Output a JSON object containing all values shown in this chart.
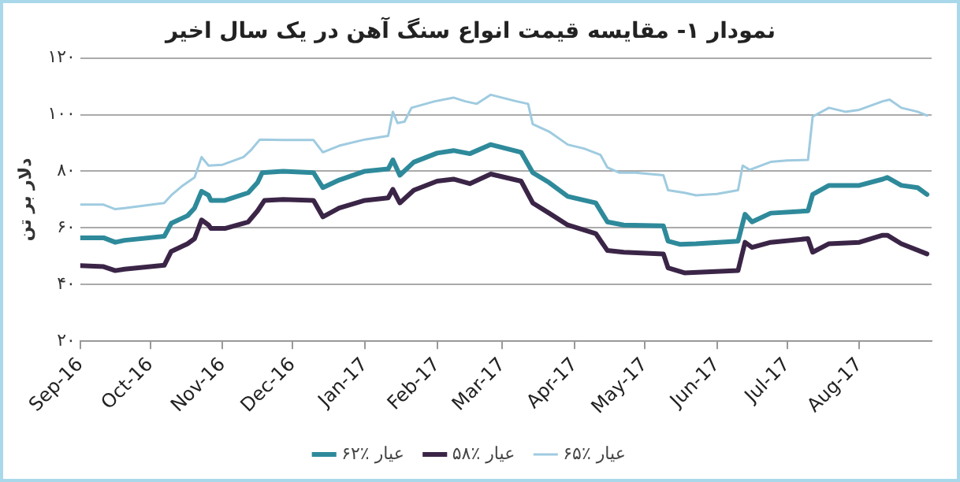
{
  "chart_data": {
    "type": "line",
    "title": "نمودار ۱- مقایسه قیمت انواع سنگ آهن در یک سال اخیر",
    "ylabel": "دلار بر تن",
    "xlim": [
      "2016-09-01",
      "2017-09-01"
    ],
    "xticks": [
      {
        "value": "2016-09-01",
        "label": "Sep-16"
      },
      {
        "value": "2016-10-01",
        "label": "Oct-16"
      },
      {
        "value": "2016-11-01",
        "label": "Nov-16"
      },
      {
        "value": "2016-12-01",
        "label": "Dec-16"
      },
      {
        "value": "2017-01-01",
        "label": "Jan-17"
      },
      {
        "value": "2017-02-01",
        "label": "Feb-17"
      },
      {
        "value": "2017-03-01",
        "label": "Mar-17"
      },
      {
        "value": "2017-04-01",
        "label": "Apr-17"
      },
      {
        "value": "2017-05-01",
        "label": "May-17"
      },
      {
        "value": "2017-06-01",
        "label": "Jun-17"
      },
      {
        "value": "2017-07-01",
        "label": "Jul-17"
      },
      {
        "value": "2017-08-01",
        "label": "Aug-17"
      }
    ],
    "ylim": [
      20,
      120
    ],
    "yticks": [
      {
        "value": 20,
        "label": "۲۰"
      },
      {
        "value": 40,
        "label": "۴۰"
      },
      {
        "value": 60,
        "label": "۶۰"
      },
      {
        "value": 80,
        "label": "۸۰"
      },
      {
        "value": 100,
        "label": "۱۰۰"
      },
      {
        "value": 120,
        "label": "۱۲۰"
      }
    ],
    "grid": "y",
    "legend": "bottom",
    "marker": "none",
    "line_style": "solid",
    "series": [
      {
        "name": "عیار ٪۶۲",
        "color": "#2e8a9b",
        "x": [
          "2016-09-01",
          "2016-09-11",
          "2016-09-16",
          "2016-09-20",
          "2016-10-07",
          "2016-10-10",
          "2016-10-17",
          "2016-10-20",
          "2016-10-23",
          "2016-10-26",
          "2016-10-27",
          "2016-11-02",
          "2016-11-12",
          "2016-11-16",
          "2016-11-18",
          "2016-11-27",
          "2016-12-10",
          "2016-12-14",
          "2016-12-21",
          "2017-01-01",
          "2017-01-11",
          "2017-01-13",
          "2017-01-16",
          "2017-01-22",
          "2017-02-01",
          "2017-02-08",
          "2017-02-15",
          "2017-02-24",
          "2017-03-09",
          "2017-03-14",
          "2017-03-21",
          "2017-03-29",
          "2017-04-10",
          "2017-04-15",
          "2017-04-22",
          "2017-05-09",
          "2017-05-11",
          "2017-05-16",
          "2017-05-23",
          "2017-06-10",
          "2017-06-13",
          "2017-06-16",
          "2017-06-24",
          "2017-07-10",
          "2017-07-12",
          "2017-07-19",
          "2017-08-01",
          "2017-08-11",
          "2017-08-13",
          "2017-08-19",
          "2017-08-26",
          "2017-08-30"
        ],
        "values": [
          56.5,
          56.5,
          54.9,
          55.6,
          57,
          61.6,
          64.3,
          67,
          72.9,
          71.5,
          69.7,
          69.7,
          72.4,
          76,
          79.5,
          80,
          79.5,
          74.2,
          76.9,
          80,
          80.8,
          84,
          78.6,
          83.2,
          86.4,
          87.3,
          86.2,
          89.4,
          86.7,
          79.5,
          76,
          71.1,
          68.8,
          62.1,
          61,
          60.7,
          55.3,
          54.2,
          54.4,
          55.3,
          64.8,
          62.1,
          65.2,
          66,
          71.8,
          75,
          75,
          77.2,
          77.8,
          75,
          74.2,
          71.8
        ]
      },
      {
        "name": "عیار ٪۵۸",
        "color": "#3b2547",
        "x": [
          "2016-09-01",
          "2016-09-11",
          "2016-09-16",
          "2016-09-20",
          "2016-10-07",
          "2016-10-10",
          "2016-10-17",
          "2016-10-20",
          "2016-10-23",
          "2016-10-26",
          "2016-10-27",
          "2016-11-02",
          "2016-11-12",
          "2016-11-16",
          "2016-11-19",
          "2016-11-27",
          "2016-12-10",
          "2016-12-14",
          "2016-12-21",
          "2017-01-01",
          "2017-01-11",
          "2017-01-13",
          "2017-01-16",
          "2017-01-22",
          "2017-02-01",
          "2017-02-08",
          "2017-02-15",
          "2017-02-24",
          "2017-03-09",
          "2017-03-14",
          "2017-03-21",
          "2017-03-29",
          "2017-04-10",
          "2017-04-15",
          "2017-04-22",
          "2017-05-09",
          "2017-05-11",
          "2017-05-18",
          "2017-06-10",
          "2017-06-13",
          "2017-06-16",
          "2017-06-24",
          "2017-07-10",
          "2017-07-12",
          "2017-07-19",
          "2017-08-01",
          "2017-08-11",
          "2017-08-13",
          "2017-08-19",
          "2017-08-30"
        ],
        "values": [
          46.7,
          46.3,
          44.9,
          45.4,
          46.8,
          51.7,
          54.4,
          56.2,
          62.8,
          61,
          59.8,
          59.8,
          62.1,
          66,
          69.7,
          70,
          69.7,
          63.9,
          67,
          69.7,
          70.6,
          73.6,
          68.8,
          73.3,
          76.5,
          77.2,
          75.6,
          79,
          76.5,
          68.8,
          65.2,
          61,
          58,
          52,
          51.4,
          50.8,
          45.9,
          44.1,
          44.9,
          54.9,
          53.1,
          54.9,
          56.2,
          51.4,
          54.4,
          54.9,
          57.4,
          57.4,
          54.4,
          50.8
        ]
      },
      {
        "name": "عیار ٪۶۵",
        "color": "#9fcbe0",
        "x": [
          "2016-09-01",
          "2016-09-11",
          "2016-09-16",
          "2016-09-20",
          "2016-10-07",
          "2016-10-10",
          "2016-10-15",
          "2016-10-20",
          "2016-10-23",
          "2016-10-26",
          "2016-11-01",
          "2016-11-10",
          "2016-11-13",
          "2016-11-17",
          "2016-11-27",
          "2016-12-10",
          "2016-12-14",
          "2016-12-21",
          "2017-01-01",
          "2017-01-11",
          "2017-01-13",
          "2017-01-15",
          "2017-01-18",
          "2017-01-21",
          "2017-01-31",
          "2017-02-08",
          "2017-02-13",
          "2017-02-18",
          "2017-02-24",
          "2017-03-07",
          "2017-03-12",
          "2017-03-14",
          "2017-03-21",
          "2017-03-29",
          "2017-04-05",
          "2017-04-12",
          "2017-04-15",
          "2017-04-20",
          "2017-04-27",
          "2017-05-09",
          "2017-05-11",
          "2017-05-18",
          "2017-05-23",
          "2017-06-01",
          "2017-06-10",
          "2017-06-12",
          "2017-06-15",
          "2017-06-24",
          "2017-07-01",
          "2017-07-10",
          "2017-07-12",
          "2017-07-19",
          "2017-07-26",
          "2017-08-01",
          "2017-08-11",
          "2017-08-14",
          "2017-08-19",
          "2017-08-26",
          "2017-08-30"
        ],
        "values": [
          68.2,
          68.2,
          66.6,
          67,
          68.8,
          71.5,
          75,
          77.8,
          85,
          82,
          82.3,
          85,
          87.3,
          91.2,
          91,
          91,
          86.7,
          89,
          91.2,
          92.5,
          101,
          97,
          97.5,
          102.4,
          104.7,
          106,
          104.7,
          103.8,
          107,
          104.7,
          103.8,
          96.6,
          94,
          89.4,
          88,
          85.8,
          81.3,
          79.5,
          79.5,
          78.6,
          73.3,
          72.4,
          71.5,
          72,
          73.3,
          82,
          80.5,
          83.3,
          83.8,
          84,
          99.3,
          102.4,
          101,
          101.7,
          104.7,
          105.3,
          102.4,
          101,
          99.7
        ]
      }
    ]
  }
}
